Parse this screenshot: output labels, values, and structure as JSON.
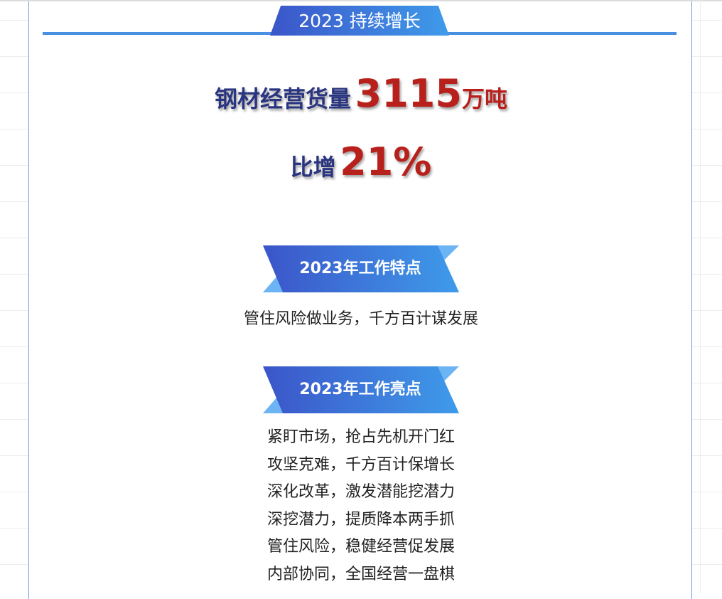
{
  "header": {
    "title": "2023 持续增长"
  },
  "headline": {
    "label": "钢材经营货量",
    "value": "3115",
    "unit": "万吨"
  },
  "growth": {
    "label": "比增",
    "value": "21%"
  },
  "sections": [
    {
      "title": "2023年工作特点",
      "lines": [
        "管住风险做业务，千方百计谋发展"
      ]
    },
    {
      "title": "2023年工作亮点",
      "lines": [
        "紧盯市场，抢占先机开门红",
        "攻坚克难，千方百计保增长",
        "深化改革，激发潜能挖潜力",
        "深挖潜力，提质降本两手抓",
        "管住风险，稳健经营促发展",
        "内部协同，全国经营一盘棋"
      ]
    }
  ],
  "colors": {
    "accent": "#4a90e2",
    "navy": "#2a3580",
    "red": "#b8201c"
  }
}
